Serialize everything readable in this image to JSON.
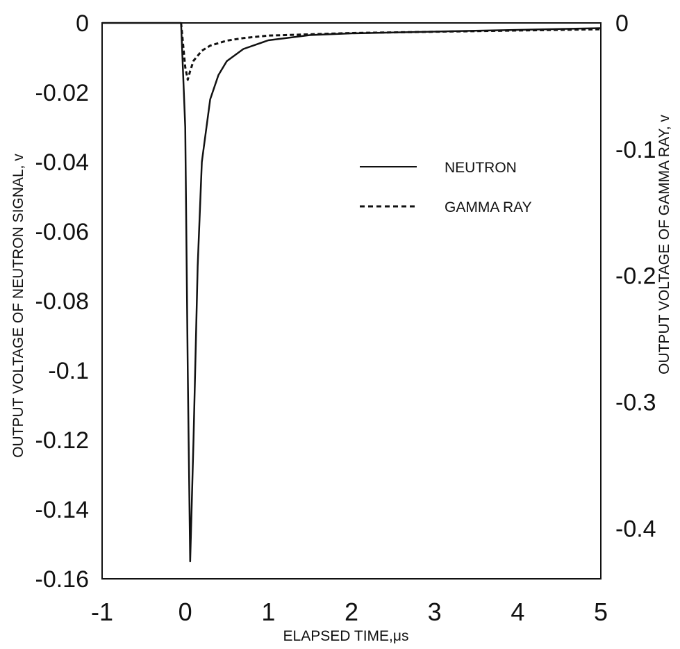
{
  "chart_data": {
    "type": "line",
    "xlabel": "ELAPSED TIME,μs",
    "ylabel": "OUTPUT VOLTAGE OF NEUTRON SIGNAL, v",
    "y2label": "OUTPUT VOLTAGE OF GAMMA RAY, v",
    "xlim": [
      -1,
      5
    ],
    "ylim": [
      -0.16,
      0
    ],
    "y2lim": [
      -0.44,
      0
    ],
    "x_ticks": [
      "-1",
      "0",
      "1",
      "2",
      "3",
      "4",
      "5"
    ],
    "y_ticks": [
      "0",
      "-0.02",
      "-0.04",
      "-0.06",
      "-0.08",
      "-0.1",
      "-0.12",
      "-0.14",
      "-0.16"
    ],
    "y2_ticks": [
      "0",
      "-0.1",
      "-0.2",
      "-0.3",
      "-0.4"
    ],
    "grid": false,
    "legend_position": "upper-right",
    "series": [
      {
        "name": "NEUTRON",
        "axis": "left",
        "style": "solid",
        "x": [
          -1,
          -0.05,
          0.0,
          0.03,
          0.06,
          0.1,
          0.15,
          0.2,
          0.3,
          0.4,
          0.5,
          0.7,
          1.0,
          1.5,
          2.0,
          3.0,
          4.0,
          5.0
        ],
        "y": [
          0.0,
          0.0,
          -0.03,
          -0.1,
          -0.155,
          -0.12,
          -0.07,
          -0.04,
          -0.022,
          -0.015,
          -0.011,
          -0.0075,
          -0.005,
          -0.0035,
          -0.003,
          -0.0025,
          -0.002,
          -0.0015
        ]
      },
      {
        "name": "GAMMA RAY",
        "axis": "right",
        "style": "dashed",
        "x": [
          -0.05,
          0.0,
          0.03,
          0.06,
          0.1,
          0.2,
          0.3,
          0.5,
          0.7,
          1.0,
          1.5,
          2.0,
          3.0,
          5.0
        ],
        "y": [
          0.0,
          -0.035,
          -0.045,
          -0.038,
          -0.03,
          -0.022,
          -0.018,
          -0.014,
          -0.012,
          -0.01,
          -0.009,
          -0.008,
          -0.007,
          -0.005
        ]
      }
    ]
  }
}
